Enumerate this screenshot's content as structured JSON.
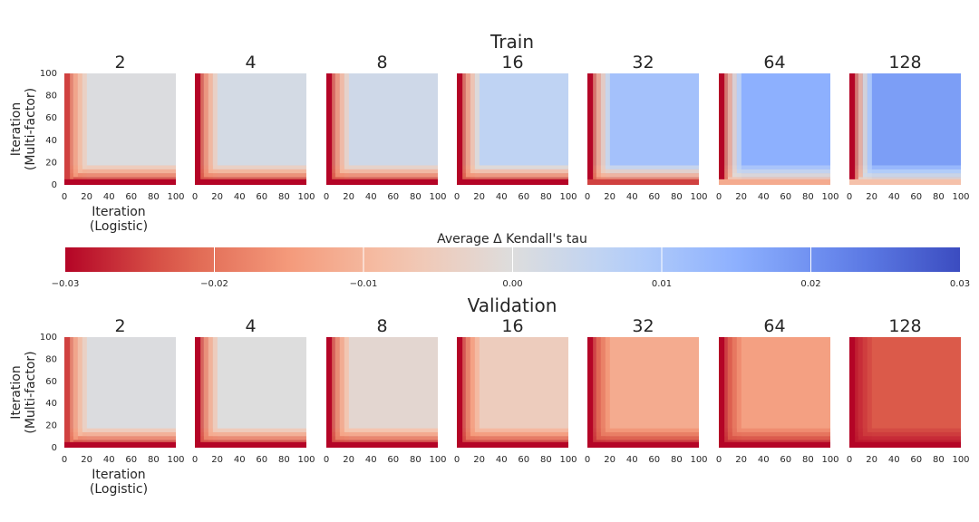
{
  "chart_data": {
    "type": "heatmap",
    "colormap": "coolwarm",
    "colorbar": {
      "label": "Average Δ Kendall's tau",
      "vmin": -0.03,
      "vmax": 0.03,
      "tick_labels": [
        "−0.03",
        "−0.02",
        "−0.01",
        "0.00",
        "0.01",
        "0.02",
        "0.03"
      ],
      "tick_values": [
        -0.03,
        -0.02,
        -0.01,
        0.0,
        0.01,
        0.02,
        0.03
      ]
    },
    "axes": {
      "xlabel": "Iteration\n(Logistic)",
      "ylabel": "Iteration\n(Multi-factor)",
      "xlim": [
        0,
        100
      ],
      "ylim": [
        0,
        100
      ],
      "ticks": [
        "0",
        "20",
        "40",
        "60",
        "80",
        "100"
      ]
    },
    "panel_titles": [
      "2",
      "4",
      "8",
      "16",
      "32",
      "64",
      "128"
    ],
    "rows": [
      {
        "title": "Train",
        "plateau_values": [
          0.0005,
          0.002,
          0.003,
          0.006,
          0.011,
          0.015,
          0.018
        ],
        "left_edge_values": [
          -0.025,
          -0.03,
          -0.03,
          -0.03,
          -0.03,
          -0.03,
          -0.03
        ],
        "bottom_edge_values": [
          -0.03,
          -0.03,
          -0.03,
          -0.03,
          -0.025,
          -0.012,
          -0.008
        ]
      },
      {
        "title": "Validation",
        "plateau_values": [
          0.0005,
          0.0,
          -0.002,
          -0.005,
          -0.012,
          -0.014,
          -0.023
        ],
        "left_edge_values": [
          -0.025,
          -0.03,
          -0.03,
          -0.03,
          -0.03,
          -0.03,
          -0.03
        ],
        "bottom_edge_values": [
          -0.03,
          -0.03,
          -0.03,
          -0.03,
          -0.03,
          -0.03,
          -0.03
        ]
      }
    ]
  }
}
